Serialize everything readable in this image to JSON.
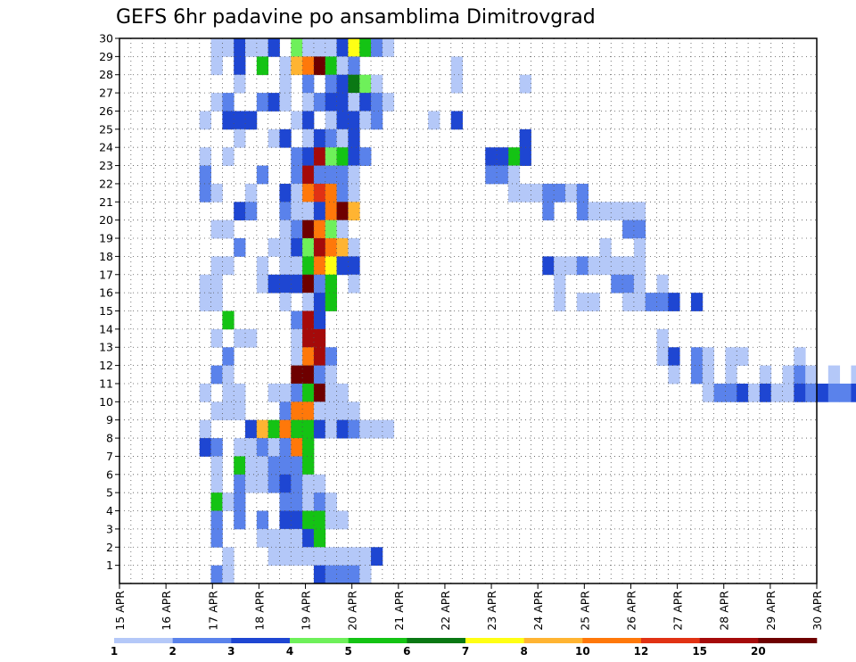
{
  "chart_data": {
    "type": "heatmap",
    "title": "GEFS 6hr padavine po ansamblima Dimitrovgrad",
    "xlabel": "",
    "ylabel": "",
    "x_tick_labels": [
      "15 APR",
      "16 APR",
      "17 APR",
      "18 APR",
      "19 APR",
      "20 APR",
      "21 APR",
      "22 APR",
      "23 APR",
      "24 APR",
      "25 APR",
      "26 APR",
      "27 APR",
      "28 APR",
      "29 APR",
      "30 APR"
    ],
    "y_tick_labels": [
      "1",
      "2",
      "3",
      "4",
      "5",
      "6",
      "7",
      "8",
      "9",
      "10",
      "11",
      "12",
      "13",
      "14",
      "15",
      "16",
      "17",
      "18",
      "19",
      "20",
      "21",
      "22",
      "23",
      "24",
      "25",
      "26",
      "27",
      "28",
      "29",
      "30"
    ],
    "y_range": [
      0,
      30
    ],
    "x_range_days": [
      0,
      15
    ],
    "time_step_hours": 6,
    "grid": true,
    "colorbar": {
      "position": "bottom",
      "labels": [
        "1",
        "2",
        "3",
        "4",
        "5",
        "6",
        "7",
        "8",
        "10",
        "12",
        "15",
        "20"
      ],
      "colors": [
        "#b4c8f8",
        "#5a82eb",
        "#1e46d2",
        "#6ef05a",
        "#14c314",
        "#0a7814",
        "#ffff14",
        "#ffb432",
        "#ff780a",
        "#e13214",
        "#a50a0a",
        "#6e0000"
      ]
    },
    "cells": [
      [
        8,
        29,
        1
      ],
      [
        9,
        29,
        1
      ],
      [
        10,
        29,
        3
      ],
      [
        11,
        29,
        1
      ],
      [
        12,
        29,
        1
      ],
      [
        13,
        29,
        3
      ],
      [
        15,
        29,
        4
      ],
      [
        16,
        29,
        1
      ],
      [
        17,
        29,
        1
      ],
      [
        18,
        29,
        1
      ],
      [
        19,
        29,
        3
      ],
      [
        20,
        29,
        7
      ],
      [
        21,
        29,
        5
      ],
      [
        22,
        29,
        2
      ],
      [
        23,
        29,
        1
      ],
      [
        8,
        28,
        1
      ],
      [
        10,
        28,
        3
      ],
      [
        12,
        28,
        5
      ],
      [
        14,
        28,
        1
      ],
      [
        15,
        28,
        8
      ],
      [
        16,
        28,
        10
      ],
      [
        17,
        28,
        20
      ],
      [
        18,
        28,
        5
      ],
      [
        19,
        28,
        1
      ],
      [
        20,
        28,
        2
      ],
      [
        10,
        27,
        1
      ],
      [
        14,
        27,
        1
      ],
      [
        16,
        27,
        2
      ],
      [
        18,
        27,
        2
      ],
      [
        19,
        27,
        3
      ],
      [
        20,
        27,
        6
      ],
      [
        21,
        27,
        4
      ],
      [
        22,
        27,
        1
      ],
      [
        8,
        26,
        1
      ],
      [
        9,
        26,
        2
      ],
      [
        12,
        26,
        2
      ],
      [
        13,
        26,
        3
      ],
      [
        14,
        26,
        1
      ],
      [
        16,
        26,
        1
      ],
      [
        17,
        26,
        2
      ],
      [
        18,
        26,
        3
      ],
      [
        19,
        26,
        3
      ],
      [
        20,
        26,
        1
      ],
      [
        21,
        26,
        3
      ],
      [
        22,
        26,
        2
      ],
      [
        23,
        26,
        1
      ],
      [
        7,
        25,
        1
      ],
      [
        9,
        25,
        3
      ],
      [
        10,
        25,
        3
      ],
      [
        11,
        25,
        3
      ],
      [
        15,
        25,
        1
      ],
      [
        16,
        25,
        3
      ],
      [
        18,
        25,
        1
      ],
      [
        19,
        25,
        3
      ],
      [
        20,
        25,
        3
      ],
      [
        21,
        25,
        1
      ],
      [
        22,
        25,
        2
      ],
      [
        10,
        24,
        1
      ],
      [
        13,
        24,
        1
      ],
      [
        14,
        24,
        3
      ],
      [
        16,
        24,
        1
      ],
      [
        17,
        24,
        3
      ],
      [
        18,
        24,
        2
      ],
      [
        19,
        24,
        1
      ],
      [
        20,
        24,
        3
      ],
      [
        7,
        23,
        1
      ],
      [
        9,
        23,
        1
      ],
      [
        15,
        23,
        2
      ],
      [
        16,
        23,
        3
      ],
      [
        17,
        23,
        15
      ],
      [
        18,
        23,
        4
      ],
      [
        19,
        23,
        5
      ],
      [
        20,
        23,
        3
      ],
      [
        21,
        23,
        2
      ],
      [
        7,
        22,
        2
      ],
      [
        12,
        22,
        2
      ],
      [
        15,
        22,
        2
      ],
      [
        16,
        22,
        15
      ],
      [
        17,
        22,
        2
      ],
      [
        18,
        22,
        2
      ],
      [
        19,
        22,
        2
      ],
      [
        20,
        22,
        1
      ],
      [
        7,
        21,
        2
      ],
      [
        8,
        21,
        1
      ],
      [
        11,
        21,
        1
      ],
      [
        14,
        21,
        3
      ],
      [
        15,
        21,
        1
      ],
      [
        16,
        21,
        10
      ],
      [
        17,
        21,
        12
      ],
      [
        18,
        21,
        10
      ],
      [
        19,
        21,
        2
      ],
      [
        20,
        21,
        1
      ],
      [
        10,
        20,
        3
      ],
      [
        11,
        20,
        2
      ],
      [
        14,
        20,
        2
      ],
      [
        15,
        20,
        1
      ],
      [
        16,
        20,
        1
      ],
      [
        17,
        20,
        3
      ],
      [
        18,
        20,
        10
      ],
      [
        19,
        20,
        20
      ],
      [
        20,
        20,
        8
      ],
      [
        8,
        19,
        1
      ],
      [
        9,
        19,
        1
      ],
      [
        14,
        19,
        1
      ],
      [
        15,
        19,
        2
      ],
      [
        16,
        19,
        20
      ],
      [
        17,
        19,
        10
      ],
      [
        18,
        19,
        4
      ],
      [
        19,
        19,
        1
      ],
      [
        10,
        18,
        2
      ],
      [
        13,
        18,
        1
      ],
      [
        14,
        18,
        1
      ],
      [
        15,
        18,
        3
      ],
      [
        16,
        18,
        4
      ],
      [
        17,
        18,
        15
      ],
      [
        18,
        18,
        10
      ],
      [
        19,
        18,
        8
      ],
      [
        20,
        18,
        1
      ],
      [
        8,
        17,
        1
      ],
      [
        9,
        17,
        1
      ],
      [
        12,
        17,
        1
      ],
      [
        14,
        17,
        1
      ],
      [
        15,
        17,
        1
      ],
      [
        16,
        17,
        5
      ],
      [
        17,
        17,
        10
      ],
      [
        18,
        17,
        7
      ],
      [
        19,
        17,
        3
      ],
      [
        20,
        17,
        3
      ],
      [
        7,
        16,
        1
      ],
      [
        8,
        16,
        1
      ],
      [
        12,
        16,
        1
      ],
      [
        13,
        16,
        3
      ],
      [
        14,
        16,
        3
      ],
      [
        15,
        16,
        3
      ],
      [
        16,
        16,
        20
      ],
      [
        17,
        16,
        2
      ],
      [
        18,
        16,
        5
      ],
      [
        20,
        16,
        1
      ],
      [
        7,
        15,
        1
      ],
      [
        8,
        15,
        1
      ],
      [
        14,
        15,
        1
      ],
      [
        16,
        15,
        1
      ],
      [
        17,
        15,
        3
      ],
      [
        18,
        15,
        5
      ],
      [
        9,
        14,
        5
      ],
      [
        15,
        14,
        2
      ],
      [
        16,
        14,
        15
      ],
      [
        17,
        14,
        3
      ],
      [
        8,
        13,
        1
      ],
      [
        10,
        13,
        1
      ],
      [
        11,
        13,
        1
      ],
      [
        15,
        13,
        1
      ],
      [
        16,
        13,
        15
      ],
      [
        17,
        13,
        15
      ],
      [
        9,
        12,
        2
      ],
      [
        15,
        12,
        1
      ],
      [
        16,
        12,
        10
      ],
      [
        17,
        12,
        15
      ],
      [
        18,
        12,
        2
      ],
      [
        8,
        11,
        2
      ],
      [
        9,
        11,
        1
      ],
      [
        15,
        11,
        20
      ],
      [
        16,
        11,
        20
      ],
      [
        17,
        11,
        2
      ],
      [
        18,
        11,
        1
      ],
      [
        7,
        10,
        1
      ],
      [
        9,
        10,
        1
      ],
      [
        10,
        10,
        1
      ],
      [
        13,
        10,
        1
      ],
      [
        14,
        10,
        1
      ],
      [
        15,
        10,
        2
      ],
      [
        16,
        10,
        5
      ],
      [
        17,
        10,
        20
      ],
      [
        18,
        10,
        1
      ],
      [
        19,
        10,
        1
      ],
      [
        8,
        9,
        1
      ],
      [
        9,
        9,
        1
      ],
      [
        10,
        9,
        1
      ],
      [
        14,
        9,
        2
      ],
      [
        15,
        9,
        10
      ],
      [
        16,
        9,
        10
      ],
      [
        17,
        9,
        1
      ],
      [
        18,
        9,
        1
      ],
      [
        19,
        9,
        1
      ],
      [
        20,
        9,
        1
      ],
      [
        7,
        8,
        1
      ],
      [
        11,
        8,
        3
      ],
      [
        12,
        8,
        8
      ],
      [
        13,
        8,
        5
      ],
      [
        14,
        8,
        10
      ],
      [
        15,
        8,
        5
      ],
      [
        16,
        8,
        5
      ],
      [
        17,
        8,
        3
      ],
      [
        18,
        8,
        1
      ],
      [
        19,
        8,
        3
      ],
      [
        20,
        8,
        2
      ],
      [
        21,
        8,
        1
      ],
      [
        22,
        8,
        1
      ],
      [
        23,
        8,
        1
      ],
      [
        7,
        7,
        3
      ],
      [
        8,
        7,
        2
      ],
      [
        10,
        7,
        1
      ],
      [
        11,
        7,
        1
      ],
      [
        12,
        7,
        2
      ],
      [
        13,
        7,
        1
      ],
      [
        14,
        7,
        2
      ],
      [
        15,
        7,
        10
      ],
      [
        16,
        7,
        5
      ],
      [
        8,
        6,
        1
      ],
      [
        10,
        6,
        5
      ],
      [
        11,
        6,
        1
      ],
      [
        12,
        6,
        1
      ],
      [
        13,
        6,
        2
      ],
      [
        14,
        6,
        2
      ],
      [
        15,
        6,
        2
      ],
      [
        16,
        6,
        5
      ],
      [
        8,
        5,
        1
      ],
      [
        10,
        5,
        2
      ],
      [
        11,
        5,
        1
      ],
      [
        12,
        5,
        1
      ],
      [
        13,
        5,
        2
      ],
      [
        14,
        5,
        3
      ],
      [
        15,
        5,
        2
      ],
      [
        16,
        5,
        1
      ],
      [
        17,
        5,
        1
      ],
      [
        8,
        4,
        5
      ],
      [
        9,
        4,
        1
      ],
      [
        10,
        4,
        2
      ],
      [
        14,
        4,
        2
      ],
      [
        15,
        4,
        2
      ],
      [
        16,
        4,
        1
      ],
      [
        17,
        4,
        2
      ],
      [
        18,
        4,
        1
      ],
      [
        8,
        3,
        2
      ],
      [
        10,
        3,
        2
      ],
      [
        12,
        3,
        2
      ],
      [
        14,
        3,
        3
      ],
      [
        15,
        3,
        3
      ],
      [
        16,
        3,
        5
      ],
      [
        17,
        3,
        5
      ],
      [
        18,
        3,
        1
      ],
      [
        19,
        3,
        1
      ],
      [
        8,
        2,
        2
      ],
      [
        12,
        2,
        1
      ],
      [
        13,
        2,
        1
      ],
      [
        14,
        2,
        1
      ],
      [
        15,
        2,
        1
      ],
      [
        16,
        2,
        3
      ],
      [
        17,
        2,
        5
      ],
      [
        9,
        1,
        1
      ],
      [
        13,
        1,
        1
      ],
      [
        14,
        1,
        1
      ],
      [
        15,
        1,
        1
      ],
      [
        16,
        1,
        1
      ],
      [
        17,
        1,
        1
      ],
      [
        18,
        1,
        1
      ],
      [
        19,
        1,
        1
      ],
      [
        20,
        1,
        1
      ],
      [
        21,
        1,
        1
      ],
      [
        22,
        1,
        3
      ],
      [
        8,
        0,
        2
      ],
      [
        9,
        0,
        1
      ],
      [
        17,
        0,
        3
      ],
      [
        18,
        0,
        2
      ],
      [
        19,
        0,
        2
      ],
      [
        20,
        0,
        2
      ],
      [
        21,
        0,
        1
      ],
      [
        29,
        28,
        1
      ],
      [
        29,
        27,
        1
      ],
      [
        35,
        27,
        1
      ],
      [
        29,
        25,
        3
      ],
      [
        27,
        25,
        1
      ],
      [
        35,
        24,
        3
      ],
      [
        35,
        23,
        3
      ],
      [
        34,
        23,
        5
      ],
      [
        32,
        23,
        3
      ],
      [
        33,
        23,
        3
      ],
      [
        32,
        22,
        2
      ],
      [
        33,
        22,
        2
      ],
      [
        34,
        22,
        1
      ],
      [
        34,
        21,
        1
      ],
      [
        35,
        21,
        1
      ],
      [
        36,
        21,
        1
      ],
      [
        37,
        21,
        2
      ],
      [
        38,
        21,
        2
      ],
      [
        39,
        21,
        1
      ],
      [
        40,
        21,
        2
      ],
      [
        37,
        20,
        2
      ],
      [
        40,
        20,
        2
      ],
      [
        41,
        20,
        1
      ],
      [
        42,
        20,
        1
      ],
      [
        43,
        20,
        1
      ],
      [
        44,
        20,
        1
      ],
      [
        45,
        20,
        1
      ],
      [
        44,
        19,
        2
      ],
      [
        45,
        19,
        2
      ],
      [
        42,
        18,
        1
      ],
      [
        45,
        18,
        1
      ],
      [
        37,
        17,
        3
      ],
      [
        38,
        17,
        1
      ],
      [
        39,
        17,
        1
      ],
      [
        40,
        17,
        2
      ],
      [
        41,
        17,
        1
      ],
      [
        42,
        17,
        1
      ],
      [
        43,
        17,
        1
      ],
      [
        44,
        17,
        1
      ],
      [
        45,
        17,
        1
      ],
      [
        38,
        16,
        1
      ],
      [
        43,
        16,
        2
      ],
      [
        44,
        16,
        2
      ],
      [
        45,
        16,
        1
      ],
      [
        47,
        16,
        1
      ],
      [
        38,
        15,
        1
      ],
      [
        40,
        15,
        1
      ],
      [
        41,
        15,
        1
      ],
      [
        44,
        15,
        1
      ],
      [
        45,
        15,
        1
      ],
      [
        46,
        15,
        2
      ],
      [
        47,
        15,
        2
      ],
      [
        48,
        15,
        3
      ],
      [
        50,
        15,
        3
      ],
      [
        47,
        13,
        1
      ],
      [
        47,
        12,
        1
      ],
      [
        48,
        12,
        3
      ],
      [
        50,
        12,
        2
      ],
      [
        51,
        12,
        1
      ],
      [
        53,
        12,
        1
      ],
      [
        54,
        12,
        1
      ],
      [
        59,
        12,
        1
      ],
      [
        48,
        11,
        1
      ],
      [
        50,
        11,
        2
      ],
      [
        51,
        11,
        1
      ],
      [
        53,
        11,
        1
      ],
      [
        56,
        11,
        1
      ],
      [
        58,
        11,
        1
      ],
      [
        59,
        11,
        2
      ],
      [
        60,
        11,
        1
      ],
      [
        62,
        11,
        1
      ],
      [
        64,
        11,
        1
      ],
      [
        65,
        11,
        2
      ],
      [
        66,
        11,
        1
      ],
      [
        51,
        10,
        1
      ],
      [
        52,
        10,
        2
      ],
      [
        53,
        10,
        2
      ],
      [
        54,
        10,
        3
      ],
      [
        55,
        10,
        1
      ],
      [
        56,
        10,
        3
      ],
      [
        57,
        10,
        1
      ],
      [
        58,
        10,
        1
      ],
      [
        59,
        10,
        3
      ],
      [
        60,
        10,
        2
      ],
      [
        61,
        10,
        3
      ],
      [
        62,
        10,
        2
      ],
      [
        63,
        10,
        2
      ],
      [
        64,
        10,
        3
      ],
      [
        65,
        10,
        2
      ],
      [
        66,
        10,
        1
      ]
    ]
  }
}
